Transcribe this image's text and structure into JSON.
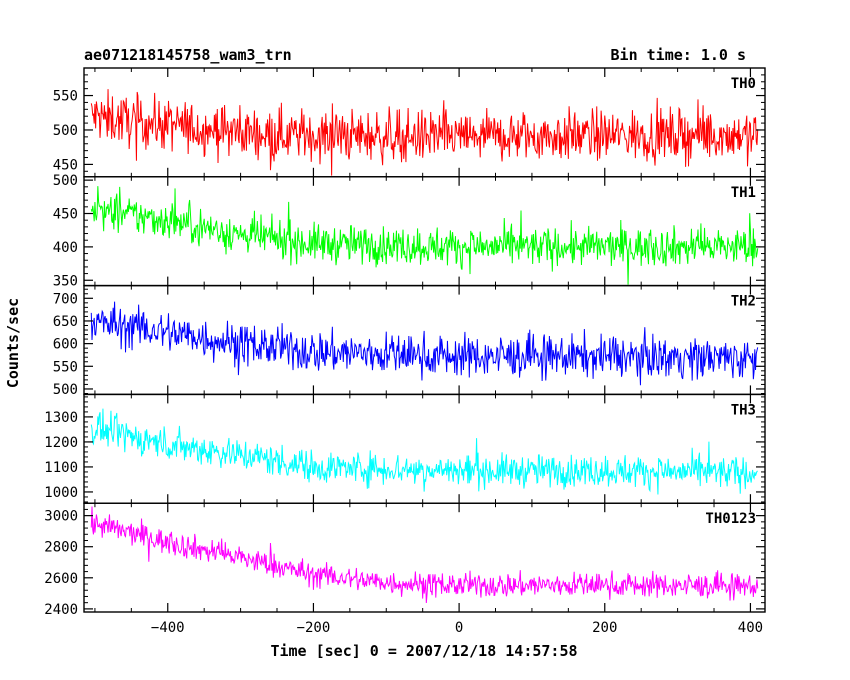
{
  "header": {
    "title": "ae071218145758_wam3_trn",
    "bin_time": "Bin time: 1.0 s"
  },
  "chart_data": {
    "type": "line",
    "title": "ae071218145758_wam3_trn",
    "xlabel": "Time [sec] 0 = 2007/12/18 14:57:58",
    "ylabel": "Counts/sec",
    "xlim": [
      -515,
      420
    ],
    "x_range_data": [
      -505,
      410
    ],
    "x_ticks": [
      -400,
      -200,
      0,
      200,
      400
    ],
    "x_tick_labels": [
      "−400",
      "−200",
      "0",
      "200",
      "400"
    ],
    "grid": false,
    "panels": [
      {
        "name": "TH0",
        "color": "#ff0000",
        "ylim": [
          432,
          590
        ],
        "yticks": [
          450,
          500,
          550
        ],
        "ytick_labels": [
          "450",
          "500",
          "550"
        ],
        "trend_x": [
          -505,
          -400,
          -300,
          -200,
          0,
          200,
          410
        ],
        "trend_y": [
          520,
          507,
          497,
          492,
          490,
          492,
          493
        ],
        "noise": 26
      },
      {
        "name": "TH1",
        "color": "#00ff00",
        "ylim": [
          342,
          505
        ],
        "yticks": [
          350,
          400,
          450,
          500
        ],
        "ytick_labels": [
          "350",
          "400",
          "450",
          "500"
        ],
        "trend_x": [
          -505,
          -400,
          -300,
          -200,
          0,
          200,
          410
        ],
        "trend_y": [
          455,
          440,
          418,
          405,
          400,
          400,
          400
        ],
        "noise": 20
      },
      {
        "name": "TH2",
        "color": "#0000ff",
        "ylim": [
          488,
          728
        ],
        "yticks": [
          500,
          550,
          600,
          650,
          700
        ],
        "ytick_labels": [
          "500",
          "550",
          "600",
          "650",
          "700"
        ],
        "trend_x": [
          -505,
          -400,
          -300,
          -200,
          0,
          200,
          410
        ],
        "trend_y": [
          648,
          625,
          600,
          582,
          572,
          572,
          568
        ],
        "noise": 32
      },
      {
        "name": "TH3",
        "color": "#00ffff",
        "ylim": [
          955,
          1390
        ],
        "yticks": [
          1000,
          1100,
          1200,
          1300
        ],
        "ytick_labels": [
          "1000",
          "1100",
          "1200",
          "1300"
        ],
        "trend_x": [
          -505,
          -400,
          -300,
          -200,
          0,
          200,
          410
        ],
        "trend_y": [
          1255,
          1190,
          1150,
          1100,
          1085,
          1085,
          1075
        ],
        "noise": 45
      },
      {
        "name": "TH0123",
        "color": "#ff00ff",
        "ylim": [
          2380,
          3080
        ],
        "yticks": [
          2400,
          2600,
          2800,
          3000
        ],
        "ytick_labels": [
          "2400",
          "2600",
          "2800",
          "3000"
        ],
        "trend_x": [
          -505,
          -400,
          -300,
          -200,
          -100,
          0,
          200,
          410
        ],
        "trend_y": [
          2950,
          2830,
          2730,
          2620,
          2570,
          2550,
          2555,
          2545
        ],
        "noise": 55
      }
    ]
  }
}
